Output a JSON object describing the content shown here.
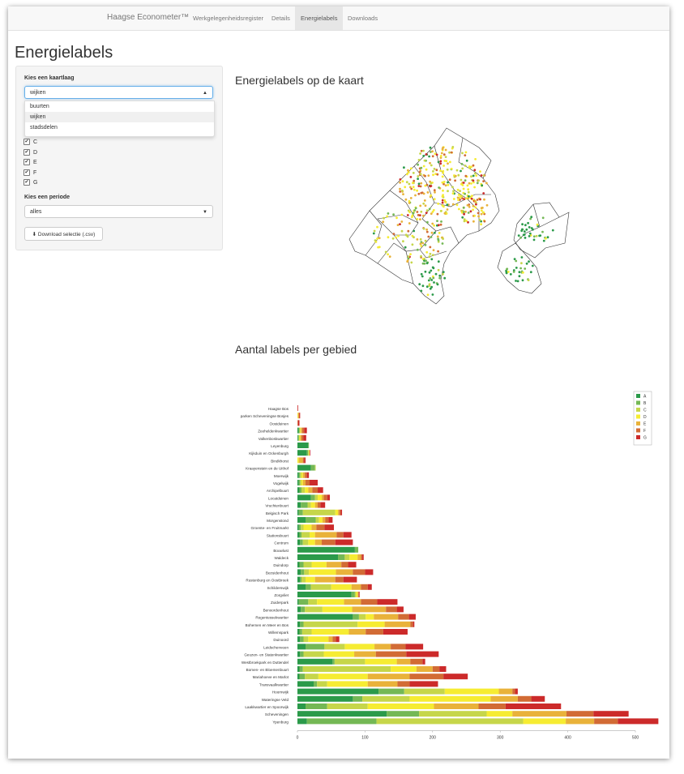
{
  "nav": {
    "brand": "Haagse Econometer™",
    "items": [
      "Werkgelegenheidsregister",
      "Details",
      "Energielabels",
      "Downloads"
    ],
    "active": "Energielabels"
  },
  "page_title": "Energielabels",
  "sidebar": {
    "layer_label": "Kies een kaartlaag",
    "layer_value": "wijken",
    "layer_options": [
      "buurten",
      "wijken",
      "stadsdelen"
    ],
    "checkboxes": [
      "C",
      "D",
      "E",
      "F",
      "G"
    ],
    "period_label": "Kies een periode",
    "period_value": "alles",
    "download_label": "Download selectie (.csv)"
  },
  "map_title": "Energielabels op de kaart",
  "chart_title": "Aantal labels per gebied",
  "colors": {
    "A": "#2b9a4a",
    "B": "#74b855",
    "C": "#c6d64a",
    "D": "#f6ec32",
    "E": "#e9b23a",
    "F": "#d26b35",
    "G": "#cc2a2a"
  },
  "chart_data": {
    "type": "bar",
    "orientation": "horizontal-stacked",
    "legend": [
      "A",
      "B",
      "C",
      "D",
      "E",
      "F",
      "G"
    ],
    "legend_position": "top-right",
    "xlim": [
      0,
      525
    ],
    "xticks": [
      0,
      100,
      200,
      300,
      400,
      500
    ],
    "categories": [
      "Haagse Bos",
      "parken Scheveningse Bosjes",
      "Oostduinen",
      "Zeeheldenkwartier",
      "Valkenboskwartier",
      "Leyenburg",
      "Kijkduin en Ockenburgh",
      "Bindkhorst",
      "Kraayenstein en de Uithof",
      "Moerwijk",
      "Vogelwijk",
      "Archipelbuurt",
      "Locatduinen",
      "Vruchtenbuurt",
      "Belgisch Park",
      "Morgenstond",
      "Groente- en Fruitmarkt",
      "Stationsbuurt",
      "Centrum",
      "Bouwlust",
      "Waldeck",
      "Duindorp",
      "Bezuidenhout",
      "Rustenburg en Oostbroek",
      "Schilderswijk",
      "Zorgvliet",
      "Zuiderpark",
      "Benoordenhout",
      "Regentessekwartier",
      "Bohemen en Meer en Bos",
      "Willemspark",
      "Duinoord",
      "Leidschenveen",
      "Geuzen- en Statenkwartier",
      "Westbroekpark en Duttendel",
      "Bomen- en Bloemenbuurt",
      "Mariahoeve en Marlot",
      "Transvaalkwartier",
      "Hoornwijk",
      "Wateringse Veld",
      "Laakkwartier en Spoorwijk",
      "Scheveningen",
      "Ypenburg"
    ],
    "series": [
      {
        "name": "A",
        "values": [
          0,
          0,
          0,
          2,
          1,
          16,
          14,
          0,
          20,
          2,
          2,
          3,
          20,
          5,
          2,
          12,
          2,
          3,
          4,
          85,
          60,
          3,
          5,
          4,
          12,
          80,
          2,
          5,
          82,
          4,
          3,
          4,
          12,
          4,
          52,
          3,
          3,
          24,
          120,
          82,
          12,
          132,
          14
        ]
      },
      {
        "name": "B",
        "values": [
          0,
          0,
          0,
          1,
          1,
          1,
          2,
          0,
          6,
          2,
          2,
          3,
          6,
          10,
          6,
          15,
          3,
          3,
          4,
          5,
          10,
          6,
          5,
          2,
          8,
          5,
          14,
          6,
          9,
          5,
          4,
          5,
          28,
          5,
          3,
          5,
          8,
          5,
          38,
          14,
          32,
          48,
          103
        ]
      },
      {
        "name": "C",
        "values": [
          0,
          0,
          0,
          1,
          1,
          0,
          1,
          0,
          1,
          2,
          2,
          5,
          4,
          5,
          48,
          5,
          4,
          12,
          8,
          0,
          7,
          12,
          7,
          6,
          30,
          2,
          13,
          26,
          10,
          80,
          14,
          7,
          30,
          30,
          45,
          130,
          20,
          15,
          60,
          70,
          60,
          100,
          217
        ]
      },
      {
        "name": "D",
        "values": [
          0,
          1,
          0,
          1,
          1,
          0,
          1,
          2,
          0,
          2,
          2,
          5,
          6,
          6,
          4,
          5,
          12,
          8,
          10,
          0,
          12,
          22,
          40,
          14,
          30,
          2,
          40,
          44,
          12,
          40,
          55,
          30,
          44,
          45,
          47,
          38,
          73,
          60,
          80,
          120,
          98,
          38,
          63
        ]
      },
      {
        "name": "E",
        "values": [
          0,
          1,
          0,
          2,
          2,
          0,
          0,
          6,
          0,
          3,
          4,
          6,
          3,
          4,
          2,
          4,
          7,
          32,
          10,
          0,
          5,
          22,
          25,
          30,
          14,
          1,
          25,
          50,
          36,
          38,
          25,
          6,
          24,
          32,
          20,
          24,
          62,
          44,
          20,
          40,
          66,
          80,
          42
        ]
      },
      {
        "name": "F",
        "values": [
          0,
          1,
          1,
          3,
          3,
          0,
          0,
          2,
          0,
          3,
          6,
          8,
          5,
          4,
          2,
          5,
          12,
          10,
          20,
          0,
          2,
          10,
          18,
          12,
          10,
          1,
          24,
          16,
          16,
          4,
          26,
          5,
          22,
          45,
          18,
          10,
          50,
          18,
          4,
          20,
          40,
          40,
          35
        ]
      },
      {
        "name": "G",
        "values": [
          1,
          1,
          2,
          4,
          4,
          0,
          1,
          2,
          0,
          3,
          12,
          8,
          4,
          7,
          2,
          6,
          14,
          12,
          26,
          0,
          2,
          12,
          12,
          20,
          6,
          1,
          30,
          10,
          10,
          2,
          36,
          5,
          26,
          48,
          4,
          10,
          36,
          42,
          4,
          20,
          82,
          52,
          60
        ]
      }
    ]
  }
}
